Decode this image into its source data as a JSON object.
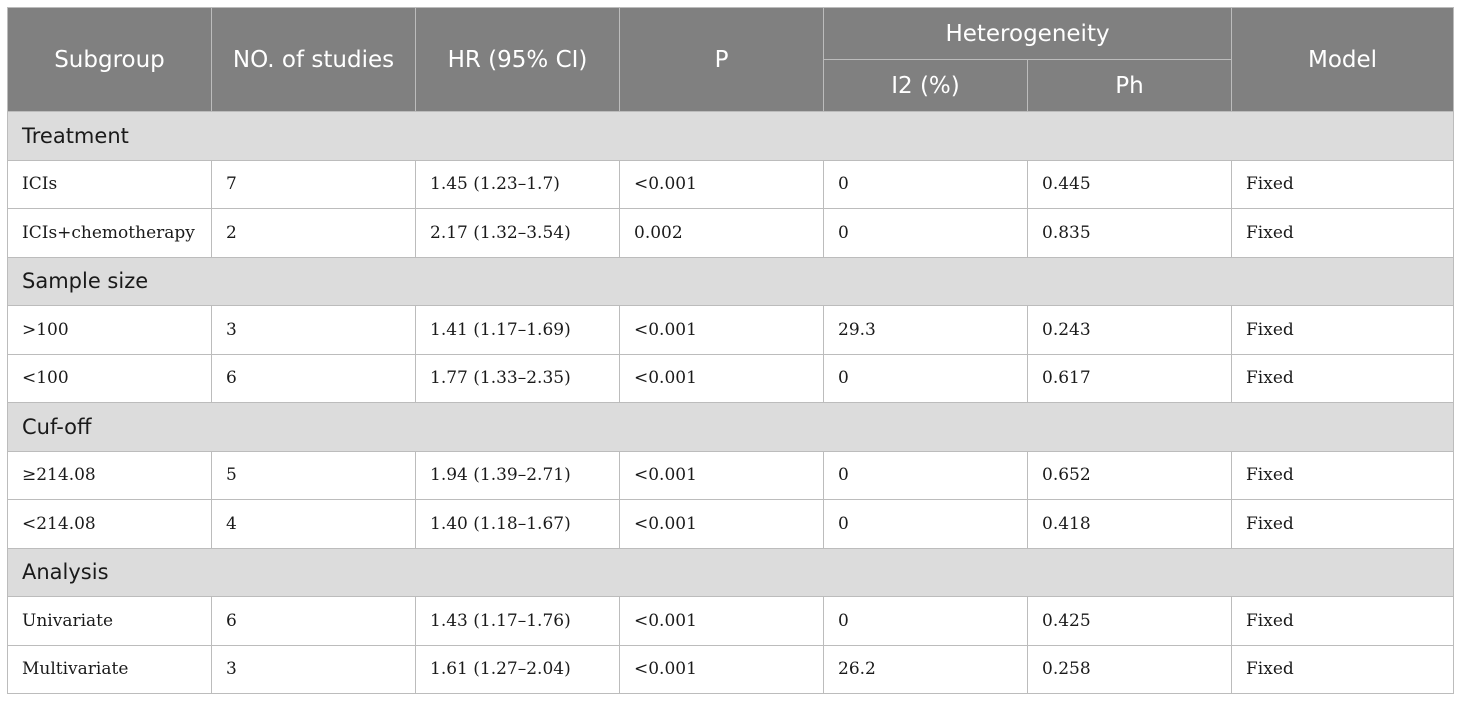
{
  "table": {
    "headers": {
      "subgroup": "Subgroup",
      "num_studies": "NO. of studies",
      "hr": "HR (95% CI)",
      "p": "P",
      "heterogeneity": "Heterogeneity",
      "i2": "I2 (%)",
      "ph": "Ph",
      "model": "Model"
    },
    "sections": [
      {
        "title": "Treatment",
        "rows": [
          [
            "ICIs",
            "7",
            "1.45 (1.23–1.7)",
            "<0.001",
            "0",
            "0.445",
            "Fixed"
          ],
          [
            "ICIs+chemotherapy",
            "2",
            "2.17 (1.32–3.54)",
            "0.002",
            "0",
            "0.835",
            "Fixed"
          ]
        ]
      },
      {
        "title": "Sample size",
        "rows": [
          [
            ">100",
            "3",
            "1.41 (1.17–1.69)",
            "<0.001",
            "29.3",
            "0.243",
            "Fixed"
          ],
          [
            "<100",
            "6",
            "1.77 (1.33–2.35)",
            "<0.001",
            "0",
            "0.617",
            "Fixed"
          ]
        ]
      },
      {
        "title": "Cuf-off",
        "rows": [
          [
            "≥214.08",
            "5",
            "1.94 (1.39–2.71)",
            "<0.001",
            "0",
            "0.652",
            "Fixed"
          ],
          [
            "<214.08",
            "4",
            "1.40 (1.18–1.67)",
            "<0.001",
            "0",
            "0.418",
            "Fixed"
          ]
        ]
      },
      {
        "title": "Analysis",
        "rows": [
          [
            "Univariate",
            "6",
            "1.43 (1.17–1.76)",
            "<0.001",
            "0",
            "0.425",
            "Fixed"
          ],
          [
            "Multivariate",
            "3",
            "1.61 (1.27–2.04)",
            "<0.001",
            "26.2",
            "0.258",
            "Fixed"
          ]
        ]
      }
    ]
  }
}
